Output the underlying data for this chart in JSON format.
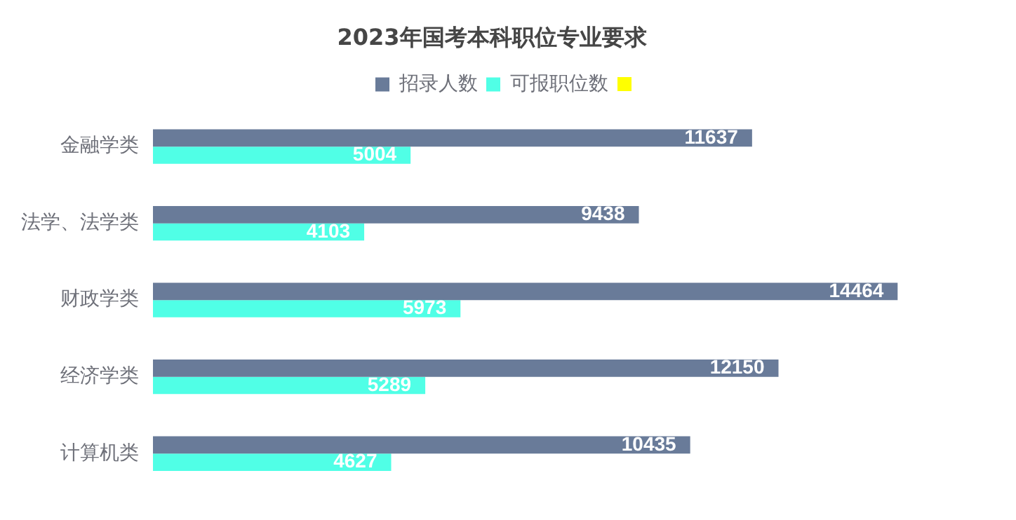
{
  "chart_data": {
    "type": "bar",
    "orientation": "horizontal",
    "title": "2023年国考本科职位专业要求",
    "categories": [
      "金融学类",
      "法学、法学类",
      "财政学类",
      "经济学类",
      "计算机类"
    ],
    "series": [
      {
        "name": "招录人数",
        "color": "#697b99",
        "values": [
          11637,
          9438,
          14464,
          12150,
          10435
        ]
      },
      {
        "name": "可报职位数",
        "color": "#50ffe6",
        "values": [
          5004,
          4103,
          5973,
          5289,
          4627
        ]
      }
    ],
    "data_labels": true,
    "legend": "top",
    "grid": false,
    "tick_labels": "y"
  }
}
